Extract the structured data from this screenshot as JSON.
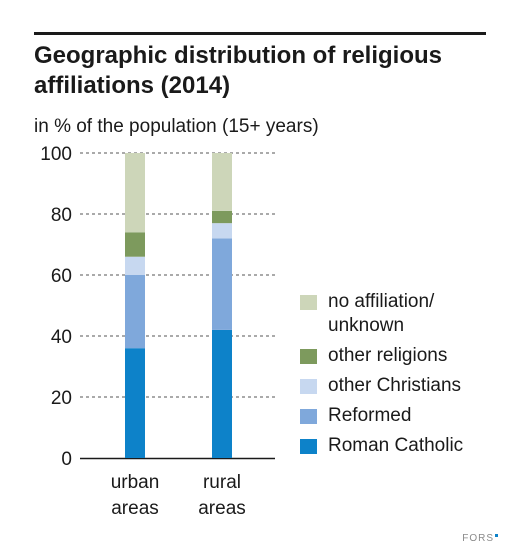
{
  "chart_data": {
    "type": "bar",
    "stacked": true,
    "title": "Geographic distribution of religious affiliations (2014)",
    "subtitle": "in % of the population (15+ years)",
    "categories": [
      [
        "urban",
        "areas"
      ],
      [
        "rural",
        "areas"
      ]
    ],
    "ylim": [
      0,
      100
    ],
    "yticks": [
      0,
      20,
      40,
      60,
      80,
      100
    ],
    "grid": true,
    "legend_position": "right",
    "series": [
      {
        "name": "Roman Catholic",
        "color": "#0d82c9",
        "values": [
          36,
          42
        ]
      },
      {
        "name": "Reformed",
        "color": "#7fa8db",
        "values": [
          24,
          30
        ]
      },
      {
        "name": "other Christians",
        "color": "#c7d8f0",
        "values": [
          6,
          5
        ]
      },
      {
        "name": "other religions",
        "color": "#7d9a5d",
        "values": [
          8,
          4
        ]
      },
      {
        "name": "no affiliation/ unknown",
        "color": "#cdd6b9",
        "values": [
          26,
          19
        ]
      }
    ]
  },
  "legend": [
    {
      "lines": [
        "no affiliation/",
        "unknown"
      ],
      "color": "#cdd6b9"
    },
    {
      "lines": [
        "other religions"
      ],
      "color": "#7d9a5d"
    },
    {
      "lines": [
        "other Christians"
      ],
      "color": "#c7d8f0"
    },
    {
      "lines": [
        "Reformed"
      ],
      "color": "#7fa8db"
    },
    {
      "lines": [
        "Roman Catholic"
      ],
      "color": "#0d82c9"
    }
  ],
  "footer": {
    "logo_text": "FORS"
  }
}
